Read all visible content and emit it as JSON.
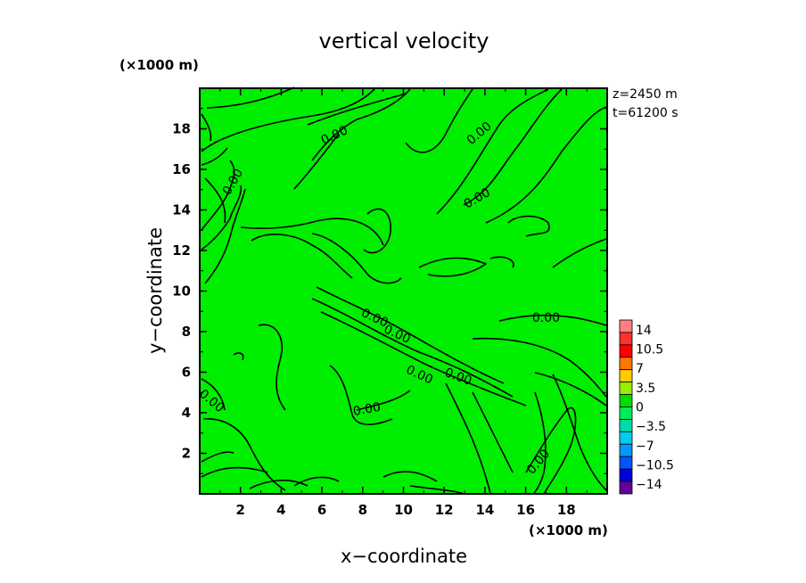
{
  "chart_data": {
    "type": "contour",
    "title": "vertical velocity",
    "xlabel": "x−coordinate",
    "ylabel": "y−coordinate",
    "x_unit": "(×1000 m)",
    "y_unit": "(×1000 m)",
    "info_lines": [
      "z=2450 m",
      "t=61200 s"
    ],
    "xlim": [
      0,
      20
    ],
    "ylim": [
      0,
      20
    ],
    "x_ticks": [
      2,
      4,
      6,
      8,
      10,
      12,
      14,
      16,
      18
    ],
    "y_ticks": [
      2,
      4,
      6,
      8,
      10,
      12,
      14,
      16,
      18
    ],
    "x_tick_labels": [
      "2",
      "4",
      "6",
      "8",
      "10",
      "12",
      "14",
      "16",
      "18"
    ],
    "y_tick_labels": [
      "2",
      "4",
      "6",
      "8",
      "10",
      "12",
      "14",
      "16",
      "18"
    ],
    "field_fill_color": "#00ee00",
    "contour_level": 0.0,
    "contour_labels": [
      {
        "text": "0.00",
        "x": 6.6,
        "y": 17.7
      },
      {
        "text": "0.00",
        "x": 13.7,
        "y": 17.8
      },
      {
        "text": "0.00",
        "x": 13.6,
        "y": 14.6
      },
      {
        "text": "0.00",
        "x": 1.6,
        "y": 15.4
      },
      {
        "text": "0.00",
        "x": 17.0,
        "y": 8.7
      },
      {
        "text": "0.00",
        "x": 8.6,
        "y": 8.7
      },
      {
        "text": "0.00",
        "x": 9.7,
        "y": 7.9
      },
      {
        "text": "0.00",
        "x": 10.8,
        "y": 5.9
      },
      {
        "text": "0.00",
        "x": 12.7,
        "y": 5.8
      },
      {
        "text": "0.00",
        "x": 0.6,
        "y": 4.6
      },
      {
        "text": "0.00",
        "x": 8.2,
        "y": 4.2
      },
      {
        "text": "0.00",
        "x": 16.6,
        "y": 1.6
      }
    ],
    "colorbar": {
      "levels": [
        -14,
        -10.5,
        -7,
        -3.5,
        0,
        3.5,
        7,
        10.5,
        14
      ],
      "labels": [
        "14",
        "10.5",
        "7",
        "3.5",
        "0",
        "−3.5",
        "−7",
        "−10.5",
        "−14"
      ],
      "colors": [
        "#ff8080",
        "#ff3030",
        "#ff0000",
        "#ff7700",
        "#ffcc00",
        "#99ee00",
        "#00dd00",
        "#00ee55",
        "#00ddaa",
        "#00ccee",
        "#0099ff",
        "#0055ff",
        "#0000dd",
        "#660099"
      ]
    }
  }
}
